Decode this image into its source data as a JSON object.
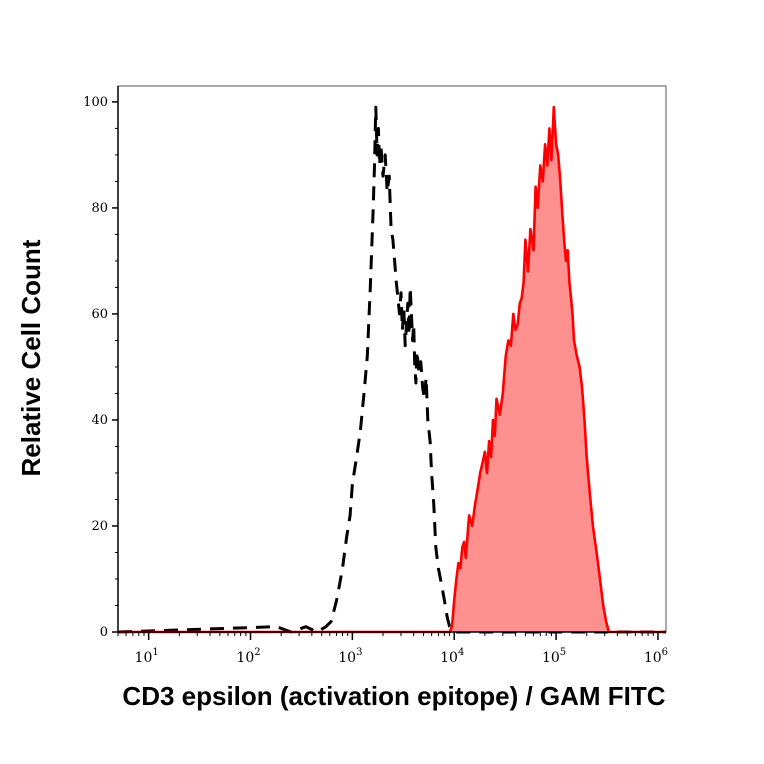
{
  "chart_data": {
    "type": "area",
    "xlabel": "CD3 epsilon (activation epitope) / GAM FITC",
    "ylabel": "Relative Cell Count",
    "x_scale": "log",
    "xlim": [
      5,
      1200000
    ],
    "ylim": [
      0,
      103
    ],
    "x_ticks": [
      10,
      100,
      1000,
      10000,
      100000,
      1000000
    ],
    "x_tick_labels": [
      {
        "base": "10",
        "exp": "1"
      },
      {
        "base": "10",
        "exp": "2"
      },
      {
        "base": "10",
        "exp": "3"
      },
      {
        "base": "10",
        "exp": "4"
      },
      {
        "base": "10",
        "exp": "5"
      },
      {
        "base": "10",
        "exp": "6"
      }
    ],
    "y_ticks": [
      0,
      20,
      40,
      60,
      80,
      100
    ],
    "y_tick_labels": [
      "0",
      "20",
      "40",
      "60",
      "80",
      "100"
    ],
    "grid": false,
    "legend": "none",
    "series": [
      {
        "style": "dashed-line",
        "color": "#000000",
        "x": [
          5,
          180,
          250,
          350,
          450,
          550,
          620,
          700,
          750,
          800,
          880,
          950,
          1000,
          1100,
          1200,
          1300,
          1400,
          1500,
          1600,
          1650,
          1700,
          1750,
          1800,
          1850,
          1900,
          2000,
          2100,
          2200,
          2300,
          2400,
          2500,
          2600,
          2700,
          2800,
          2900,
          3000,
          3100,
          3200,
          3300,
          3400,
          3500,
          3600,
          3700,
          3800,
          3900,
          4000,
          4100,
          4200,
          4300,
          4500,
          4700,
          4900,
          5100,
          5300,
          5500,
          5800,
          6000,
          6300,
          6600,
          7000,
          7500,
          8000,
          8500,
          9000,
          10000,
          20000,
          100000,
          300000,
          1200000
        ],
        "y": [
          0,
          1,
          0,
          1,
          0,
          1,
          2,
          6,
          9,
          12,
          18,
          22,
          28,
          33,
          38,
          45,
          52,
          65,
          80,
          88,
          99,
          90,
          95,
          88,
          92,
          86,
          90,
          83,
          86,
          76,
          74,
          70,
          66,
          63,
          60,
          64,
          57,
          61,
          54,
          58,
          62,
          56,
          65,
          60,
          55,
          58,
          50,
          47,
          53,
          49,
          51,
          46,
          44,
          48,
          40,
          36,
          30,
          24,
          16,
          12,
          9,
          6,
          3,
          1,
          0,
          0,
          0,
          0,
          0
        ]
      },
      {
        "style": "filled-area",
        "color": "#ff0000",
        "fill": "#ff9090",
        "x": [
          5,
          9000,
          9500,
          10000,
          10500,
          11000,
          11500,
          12000,
          12500,
          13000,
          14000,
          15000,
          16000,
          17000,
          18000,
          19000,
          20000,
          21000,
          22000,
          23000,
          24000,
          25000,
          26000,
          28000,
          30000,
          32000,
          34000,
          36000,
          38000,
          40000,
          42000,
          44000,
          46000,
          48000,
          50000,
          53000,
          56000,
          60000,
          63000,
          66000,
          70000,
          74000,
          78000,
          82000,
          86000,
          90000,
          95000,
          100000,
          105000,
          110000,
          115000,
          120000,
          125000,
          130000,
          135000,
          140000,
          145000,
          150000,
          160000,
          170000,
          180000,
          190000,
          200000,
          215000,
          230000,
          250000,
          270000,
          290000,
          310000,
          330000,
          360000,
          400000,
          1200000
        ],
        "y": [
          0,
          0,
          1,
          6,
          10,
          13,
          12,
          16,
          17,
          14,
          22,
          20,
          24,
          27,
          30,
          32,
          34,
          30,
          36,
          33,
          40,
          37,
          44,
          41,
          45,
          52,
          55,
          54,
          60,
          57,
          58,
          62,
          63,
          66,
          74,
          68,
          76,
          72,
          84,
          80,
          88,
          85,
          92,
          88,
          95,
          89,
          99,
          92,
          90,
          85,
          79,
          74,
          70,
          72,
          66,
          63,
          60,
          55,
          52,
          50,
          46,
          40,
          33,
          26,
          20,
          15,
          10,
          5,
          2,
          0,
          0,
          0,
          0
        ]
      }
    ]
  }
}
